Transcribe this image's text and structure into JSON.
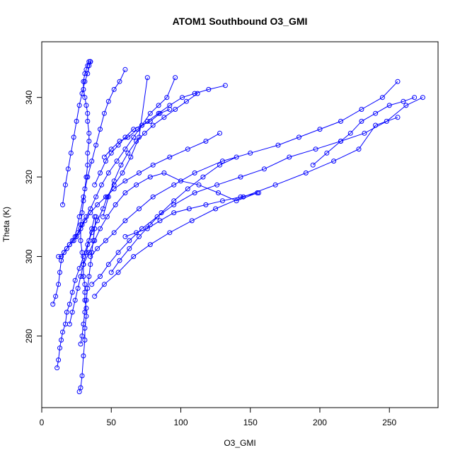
{
  "chart_data": {
    "type": "line",
    "title": "ATOM1 Southbound O3_GMI",
    "xlabel": "O3_GMI",
    "ylabel": "Theta (K)",
    "xlim": [
      0,
      285
    ],
    "ylim": [
      262,
      354
    ],
    "xticks": [
      0,
      50,
      100,
      150,
      200,
      250
    ],
    "yticks": [
      280,
      300,
      320,
      340
    ],
    "grid": false,
    "color": "#0000ff",
    "series": [
      {
        "x": [
          27,
          28,
          29,
          30,
          31,
          31,
          32,
          32,
          31,
          31,
          31,
          30,
          30,
          29,
          28,
          28,
          29,
          30,
          31,
          32,
          33,
          33,
          34,
          34,
          33,
          33,
          32,
          31,
          30,
          30,
          31,
          32,
          33,
          34,
          35,
          34
        ],
        "y": [
          266,
          267,
          270,
          275,
          279,
          282,
          285,
          287,
          289,
          291,
          293,
          295,
          298,
          301,
          304,
          308,
          311,
          314,
          317,
          320,
          323,
          326,
          329,
          331,
          334,
          336,
          338,
          340,
          342,
          344,
          346,
          347,
          348,
          349,
          349,
          348
        ]
      },
      {
        "x": [
          11,
          12,
          13,
          14,
          15,
          17,
          18,
          20,
          22,
          24,
          27,
          30,
          33,
          36,
          40,
          44,
          47,
          52,
          58,
          64,
          70,
          76
        ],
        "y": [
          272,
          274,
          277,
          279,
          281,
          283,
          286,
          288,
          291,
          294,
          297,
          300,
          303,
          306,
          309,
          312,
          315,
          318,
          321,
          325,
          330,
          345
        ]
      },
      {
        "x": [
          8,
          10,
          12,
          13,
          14,
          16,
          18,
          20,
          23,
          26,
          29,
          32,
          35,
          39,
          43,
          48,
          54,
          60,
          66,
          72,
          78,
          84,
          90,
          96
        ],
        "y": [
          288,
          290,
          293,
          296,
          299,
          301,
          302,
          303,
          304,
          306,
          308,
          310,
          312,
          315,
          318,
          321,
          324,
          327,
          330,
          333,
          336,
          338,
          340,
          345
        ]
      },
      {
        "x": [
          12,
          14,
          16,
          18,
          20,
          22,
          25,
          28,
          31,
          35,
          40,
          46,
          52,
          60,
          70,
          80,
          92,
          105,
          118,
          128
        ],
        "y": [
          300,
          300,
          301,
          302,
          303,
          304,
          305,
          307,
          309,
          311,
          313,
          315,
          317,
          319,
          321,
          323,
          325,
          327,
          329,
          331
        ]
      },
      {
        "x": [
          35,
          40,
          46,
          52,
          60,
          70,
          80,
          95,
          110,
          130,
          150,
          170,
          185,
          200,
          215,
          230,
          245,
          256
        ],
        "y": [
          300,
          302,
          304,
          306,
          309,
          312,
          315,
          318,
          321,
          324,
          326,
          328,
          330,
          332,
          334,
          337,
          340,
          344
        ]
      },
      {
        "x": [
          36,
          42,
          48,
          55,
          63,
          72,
          83,
          95,
          110,
          126,
          143,
          160,
          178,
          197,
          215,
          232,
          248,
          262,
          274
        ],
        "y": [
          293,
          295,
          298,
          301,
          304,
          307,
          310,
          313,
          316,
          318,
          320,
          322,
          325,
          327,
          329,
          331,
          334,
          338,
          340
        ]
      },
      {
        "x": [
          38,
          45,
          55,
          66,
          78,
          92,
          108,
          125,
          145,
          168,
          190,
          210,
          228,
          240,
          256
        ],
        "y": [
          290,
          293,
          296,
          300,
          303,
          306,
          309,
          312,
          315,
          318,
          321,
          324,
          327,
          333,
          335
        ]
      },
      {
        "x": [
          30,
          34,
          38,
          42,
          47,
          53,
          60,
          68,
          78,
          88,
          100,
          113,
          127,
          140,
          155
        ],
        "y": [
          298,
          301,
          304,
          307,
          310,
          313,
          316,
          318,
          320,
          321,
          319,
          318,
          316,
          314,
          316
        ]
      },
      {
        "x": [
          24,
          27,
          30,
          33,
          36,
          39,
          42,
          45,
          48,
          52,
          56,
          60
        ],
        "y": [
          305,
          310,
          315,
          320,
          324,
          328,
          332,
          336,
          339,
          342,
          344,
          347
        ]
      },
      {
        "x": [
          15,
          17,
          19,
          21,
          23,
          25,
          27,
          29,
          31,
          33,
          35
        ],
        "y": [
          313,
          318,
          322,
          326,
          330,
          334,
          338,
          341,
          344,
          346,
          349
        ]
      },
      {
        "x": [
          44,
          48,
          52,
          57,
          62,
          68,
          74,
          80,
          88,
          96,
          104,
          112
        ],
        "y": [
          310,
          315,
          319,
          323,
          326,
          329,
          331,
          333,
          335,
          337,
          339,
          341
        ]
      },
      {
        "x": [
          38,
          42,
          46,
          50,
          55,
          60,
          66,
          72,
          78,
          85,
          92
        ],
        "y": [
          318,
          321,
          324,
          326,
          328,
          330,
          332,
          333,
          334,
          336,
          337
        ]
      },
      {
        "x": [
          50,
          56,
          63,
          70,
          78,
          86,
          95,
          105,
          116,
          128,
          140
        ],
        "y": [
          296,
          299,
          302,
          305,
          308,
          311,
          314,
          317,
          320,
          323,
          325
        ]
      },
      {
        "x": [
          20,
          22,
          24,
          26,
          28,
          30,
          32,
          34,
          36,
          38
        ],
        "y": [
          283,
          286,
          289,
          292,
          295,
          298,
          301,
          304,
          307,
          310
        ]
      },
      {
        "x": [
          28,
          29,
          30,
          31,
          32,
          33,
          34,
          35,
          36,
          37,
          38,
          39
        ],
        "y": [
          278,
          280,
          283,
          286,
          289,
          292,
          295,
          298,
          301,
          304,
          307,
          310
        ]
      },
      {
        "x": [
          60,
          68,
          76,
          85,
          95,
          106,
          118,
          130,
          143,
          156
        ],
        "y": [
          305,
          306,
          307,
          309,
          311,
          312,
          313,
          314,
          315,
          316
        ]
      },
      {
        "x": [
          45,
          50,
          56,
          62,
          69,
          76,
          84,
          92,
          101,
          110,
          120,
          132
        ],
        "y": [
          325,
          327,
          329,
          330,
          332,
          334,
          336,
          338,
          340,
          341,
          342,
          343
        ]
      },
      {
        "x": [
          195,
          205,
          215,
          222,
          230,
          240,
          250,
          260,
          268
        ],
        "y": [
          323,
          326,
          329,
          331,
          334,
          336,
          338,
          339,
          340
        ]
      }
    ]
  }
}
